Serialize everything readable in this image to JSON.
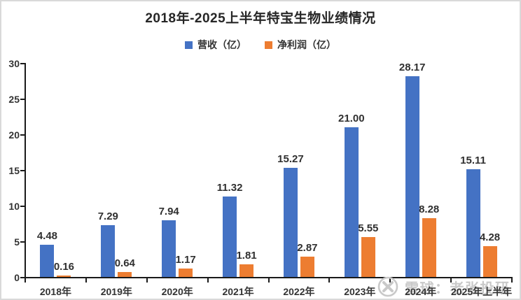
{
  "chart_data": {
    "type": "bar",
    "title": "2018年-2025上半年特宝生物业绩情况",
    "categories": [
      "2018年",
      "2019年",
      "2020年",
      "2021年",
      "2022年",
      "2023年",
      "2024年",
      "2025年上半年"
    ],
    "series": [
      {
        "name": "营收（亿）",
        "color": "#4472C4",
        "values": [
          4.48,
          7.29,
          7.94,
          11.32,
          15.27,
          21.0,
          28.17,
          15.11
        ]
      },
      {
        "name": "净利润（亿）",
        "color": "#ED7D31",
        "values": [
          0.16,
          0.64,
          1.17,
          1.81,
          2.87,
          5.55,
          8.28,
          4.28
        ]
      }
    ],
    "ylim": [
      0,
      30
    ],
    "yticks": [
      0,
      5,
      10,
      15,
      20,
      25,
      30
    ],
    "grid": false,
    "legend_position": "top",
    "value_labels": true,
    "value_label_decimals": 2
  },
  "watermark": {
    "text": "雪球：老张投研"
  }
}
